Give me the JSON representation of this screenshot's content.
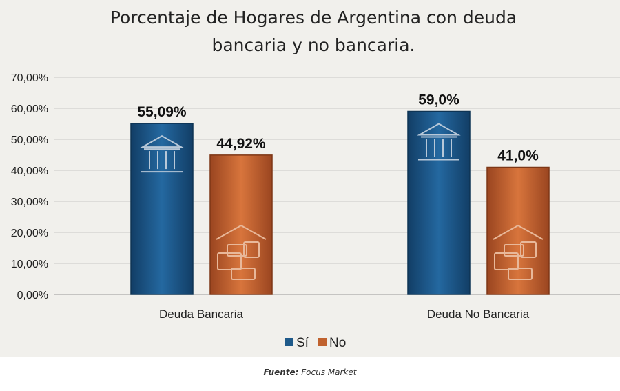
{
  "chart_data": {
    "type": "bar",
    "title": "Porcentaje de Hogares de Argentina con deuda bancaria y no bancaria.",
    "title_lines": [
      "Porcentaje de Hogares de Argentina con deuda",
      "bancaria y no bancaria."
    ],
    "categories": [
      "Deuda Bancaria",
      "Deuda No Bancaria"
    ],
    "series": [
      {
        "name": "Sí",
        "values": [
          55.09,
          59.0
        ],
        "labels": [
          "55,09%",
          "59,0%"
        ],
        "color": "#1f5a8a",
        "icon": "bank-icon"
      },
      {
        "name": "No",
        "values": [
          44.92,
          41.0
        ],
        "labels": [
          "44,92%",
          "41,0%"
        ],
        "color": "#c0622e",
        "icon": "household-finance-icon"
      }
    ],
    "ylim": [
      0,
      70
    ],
    "yticks": [
      "0,00%",
      "10,00%",
      "20,00%",
      "30,00%",
      "40,00%",
      "50,00%",
      "60,00%",
      "70,00%"
    ],
    "grid": true,
    "legend_position": "bottom"
  },
  "source": {
    "label": "Fuente:",
    "value": "Focus Market"
  }
}
